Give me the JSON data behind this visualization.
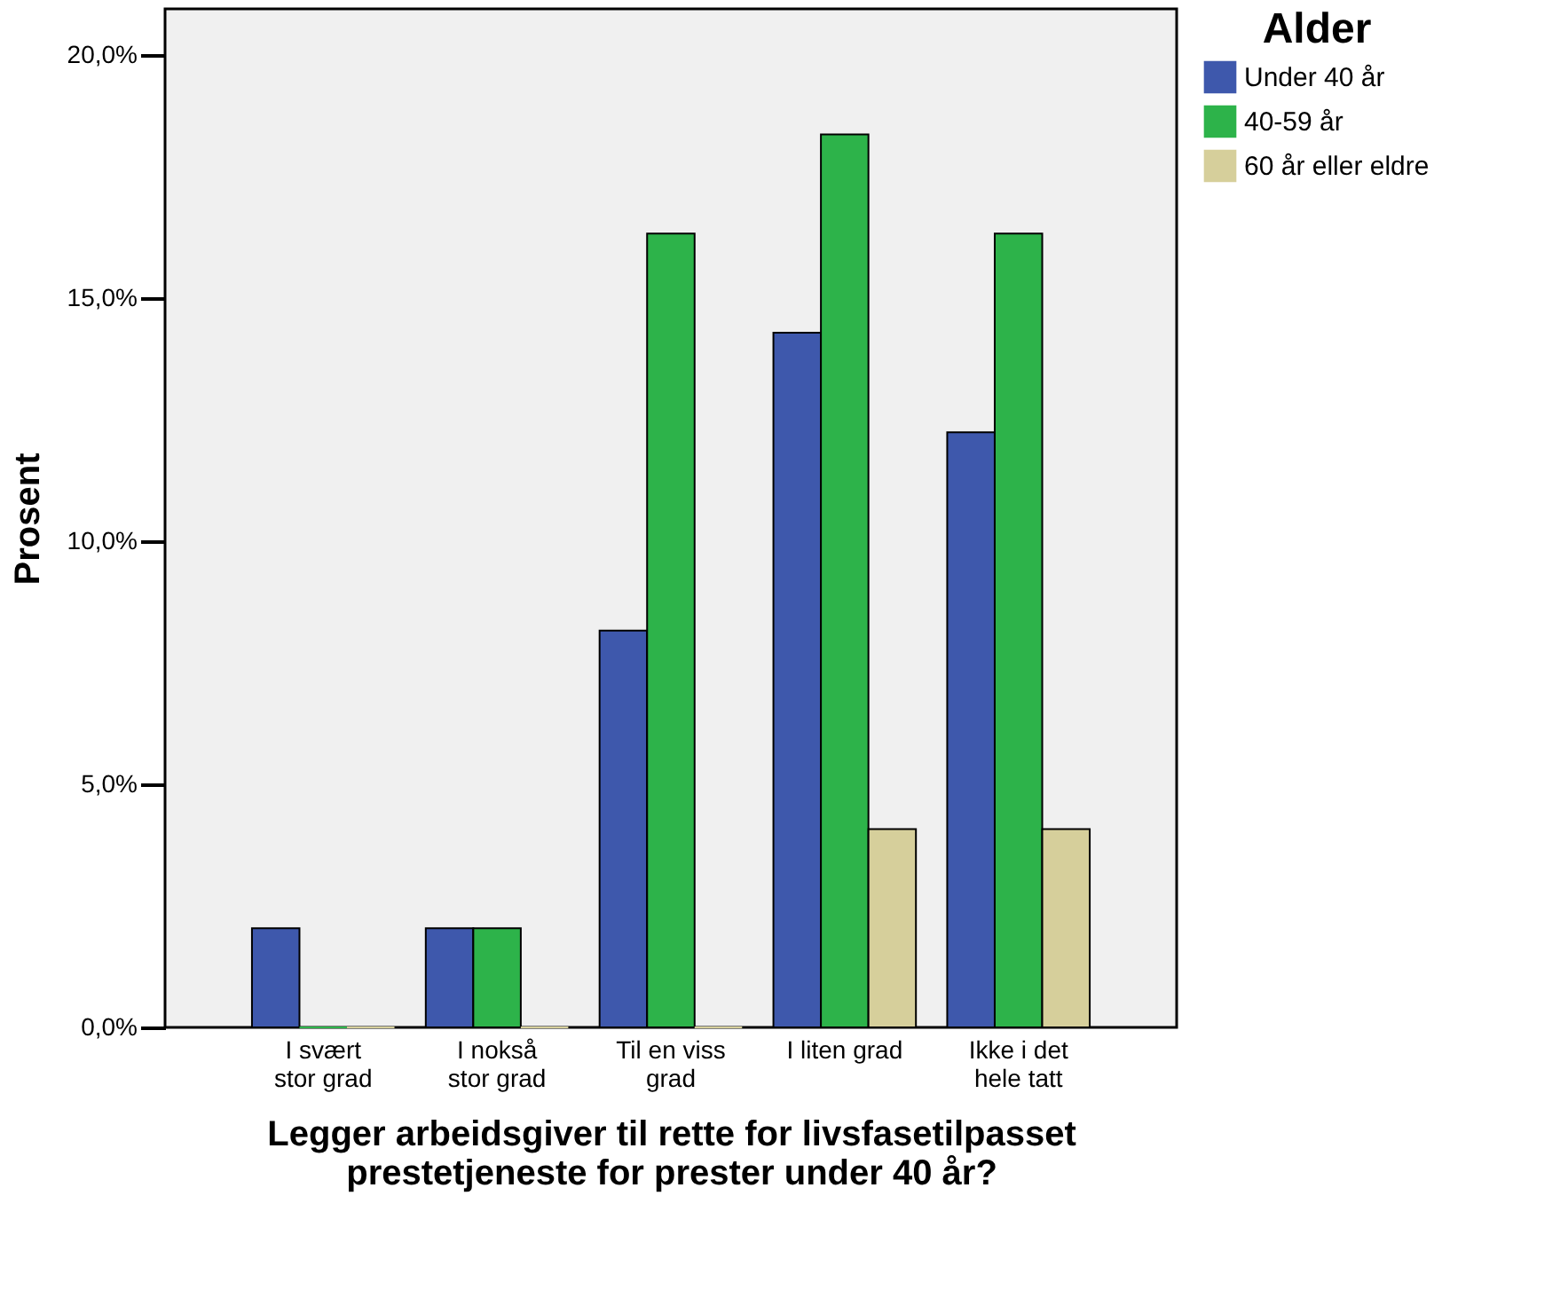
{
  "chart_data": {
    "type": "bar",
    "xlabel": "Legger arbeidsgiver til rette for livsfasetilpasset\nprestetjeneste for prester under 40 år?",
    "ylabel": "Prosent",
    "legend_title": "Alder",
    "legend": "top right",
    "grid": false,
    "categories": [
      "I svært\nstor grad",
      "I nokså\nstor grad",
      "Til en viss\ngrad",
      "I liten grad",
      "Ikke i det\nhele tatt"
    ],
    "series": [
      {
        "name": "Under 40 år",
        "color": "#3e58ac",
        "values": [
          2.04,
          2.04,
          8.16,
          14.29,
          12.24
        ]
      },
      {
        "name": "40-59 år",
        "color": "#2db34a",
        "values": [
          0,
          2.04,
          16.33,
          18.37,
          16.33
        ]
      },
      {
        "name": "60 år eller eldre",
        "color": "#d6cf9b",
        "values": [
          0,
          0,
          0,
          4.08,
          4.08
        ]
      }
    ],
    "ylim": [
      0,
      20.95
    ],
    "yticks": [
      {
        "value": 0,
        "label": "0,0%"
      },
      {
        "value": 5,
        "label": "5,0%"
      },
      {
        "value": 10,
        "label": "10,0%"
      },
      {
        "value": 15,
        "label": "15,0%"
      },
      {
        "value": 20,
        "label": "20,0%"
      }
    ]
  }
}
